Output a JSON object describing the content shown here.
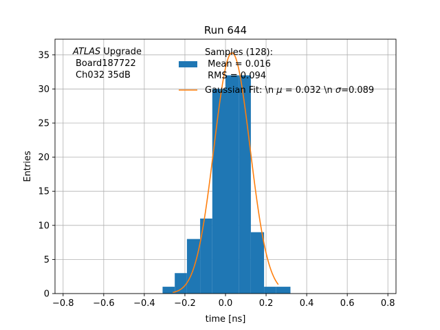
{
  "chart_data": {
    "type": "bar",
    "title": "Run 644",
    "xlabel": "time [ns]",
    "ylabel": "Entries",
    "xlim": [
      -0.84,
      0.84
    ],
    "ylim": [
      0,
      37.3
    ],
    "grid": true,
    "legend_placement": "top-center",
    "xticks": [
      -0.8,
      -0.6,
      -0.4,
      -0.2,
      0.0,
      0.2,
      0.4,
      0.6,
      0.8
    ],
    "xtick_labels": [
      "−0.8",
      "−0.6",
      "−0.4",
      "−0.2",
      "0.0",
      "0.2",
      "0.4",
      "0.6",
      "0.8"
    ],
    "yticks": [
      0,
      5,
      10,
      15,
      20,
      25,
      30,
      35
    ],
    "ytick_labels": [
      "0",
      "5",
      "10",
      "15",
      "20",
      "25",
      "30",
      "35"
    ],
    "annotation": {
      "italic_part": "ATLAS",
      "rest_line1": " Upgrade",
      "line2": "Board187722",
      "line3": "Ch032 35dB"
    },
    "histogram": {
      "name_lines": [
        "Samples (128):",
        " Mean = 0.016",
        " RMS = 0.094"
      ],
      "color": "#1f77b4",
      "bins": [
        {
          "x0": -0.31,
          "x1": -0.25,
          "count": 1
        },
        {
          "x0": -0.25,
          "x1": -0.19,
          "count": 3
        },
        {
          "x0": -0.19,
          "x1": -0.125,
          "count": 8
        },
        {
          "x0": -0.125,
          "x1": -0.065,
          "count": 11
        },
        {
          "x0": -0.065,
          "x1": 0.0,
          "count": 30
        },
        {
          "x0": 0.0,
          "x1": 0.065,
          "count": 32
        },
        {
          "x0": 0.065,
          "x1": 0.125,
          "count": 32
        },
        {
          "x0": 0.125,
          "x1": 0.19,
          "count": 9
        },
        {
          "x0": 0.19,
          "x1": 0.25,
          "count": 1
        },
        {
          "x0": 0.25,
          "x1": 0.32,
          "count": 1
        }
      ]
    },
    "fit": {
      "name": "Gaussian Fit: \\n μ = 0.032 \\n σ=0.089",
      "legend_parts": [
        {
          "text": "Gaussian Fit: \\n ",
          "italic": false
        },
        {
          "text": "μ",
          "italic": true
        },
        {
          "text": " = 0.032 \\n ",
          "italic": false
        },
        {
          "text": "σ",
          "italic": true
        },
        {
          "text": "=0.089",
          "italic": false
        }
      ],
      "color": "#ff7f0e",
      "amplitude": 35.3,
      "mu": 0.032,
      "sigma": 0.089,
      "x_range": [
        -0.26,
        0.26
      ]
    }
  }
}
